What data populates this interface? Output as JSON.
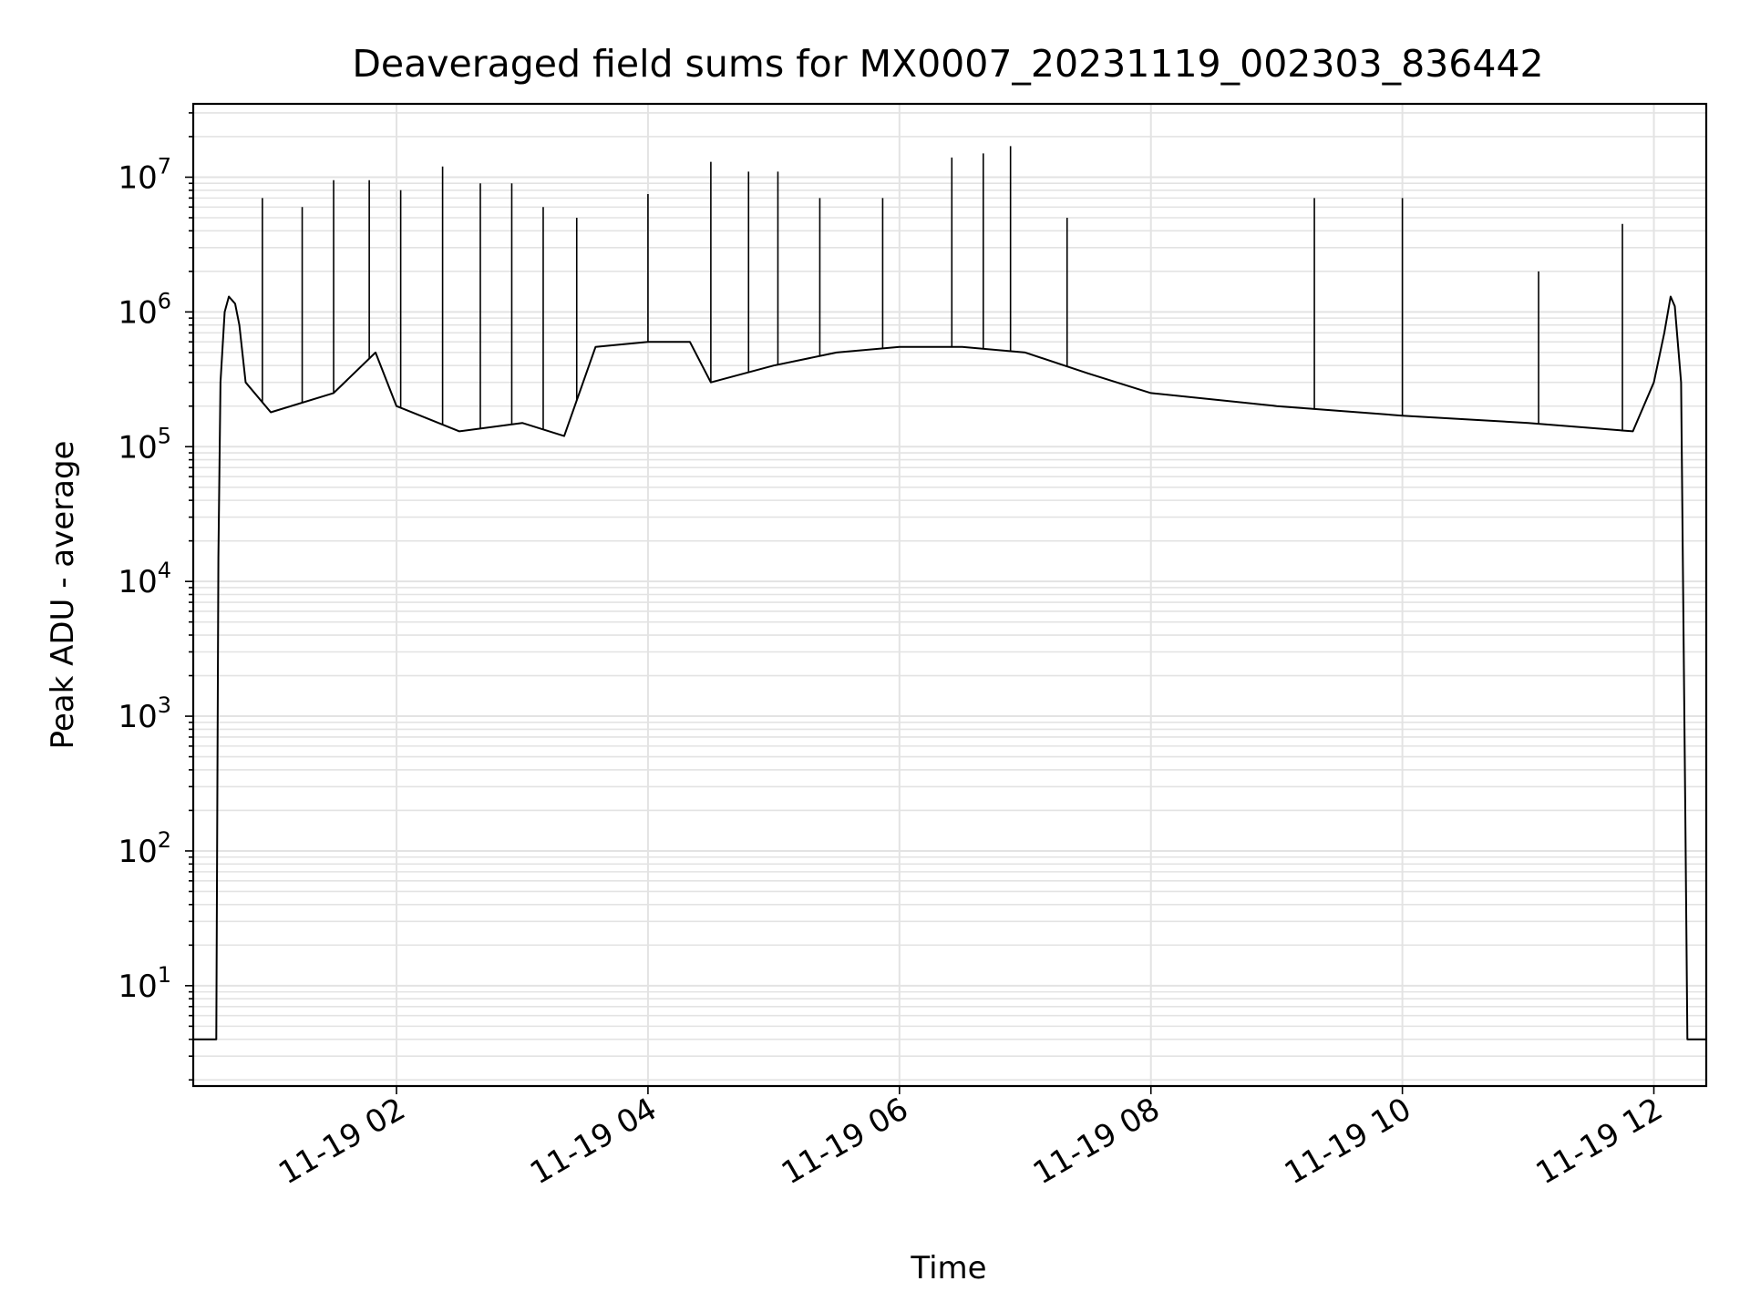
{
  "chart_data": {
    "type": "line",
    "title": "Deaveraged field sums for MX0007_20231119_002303_836442",
    "xlabel": "Time",
    "ylabel": "Peak ADU - average",
    "x_axis": {
      "kind": "datetime",
      "range": [
        "2023-11-19 00:23",
        "2023-11-19 12:25"
      ],
      "ticks": [
        "2023-11-19 02:00",
        "2023-11-19 04:00",
        "2023-11-19 06:00",
        "2023-11-19 08:00",
        "2023-11-19 10:00",
        "2023-11-19 12:00"
      ],
      "tick_labels": [
        "11-19 02",
        "11-19 04",
        "11-19 06",
        "11-19 08",
        "11-19 10",
        "11-19 12"
      ]
    },
    "y_axis": {
      "scale": "log",
      "range": [
        1.8,
        35000000
      ],
      "ticks": [
        10,
        100,
        1000,
        10000,
        100000,
        1000000,
        10000000
      ],
      "tick_labels": [
        {
          "base": "10",
          "exp": "1"
        },
        {
          "base": "10",
          "exp": "2"
        },
        {
          "base": "10",
          "exp": "3"
        },
        {
          "base": "10",
          "exp": "4"
        },
        {
          "base": "10",
          "exp": "5"
        },
        {
          "base": "10",
          "exp": "6"
        },
        {
          "base": "10",
          "exp": "7"
        }
      ]
    },
    "grid": "major and minor, light gray",
    "series": [
      {
        "color": "#000000",
        "points": [
          [
            "2023-11-19 00:23",
            4
          ],
          [
            "2023-11-19 00:34",
            4
          ],
          [
            "2023-11-19 00:35",
            15000
          ],
          [
            "2023-11-19 00:36",
            300000
          ],
          [
            "2023-11-19 00:38",
            1000000
          ],
          [
            "2023-11-19 00:40",
            1300000
          ],
          [
            "2023-11-19 00:43",
            1150000
          ],
          [
            "2023-11-19 00:45",
            800000
          ],
          [
            "2023-11-19 00:48",
            300000
          ],
          [
            "2023-11-19 01:00",
            180000
          ],
          [
            "2023-11-19 01:30",
            250000
          ],
          [
            "2023-11-19 01:50",
            500000
          ],
          [
            "2023-11-19 02:00",
            200000
          ],
          [
            "2023-11-19 02:30",
            130000
          ],
          [
            "2023-11-19 03:00",
            150000
          ],
          [
            "2023-11-19 03:20",
            120000
          ],
          [
            "2023-11-19 03:35",
            550000
          ],
          [
            "2023-11-19 04:00",
            600000
          ],
          [
            "2023-11-19 04:20",
            600000
          ],
          [
            "2023-11-19 04:30",
            300000
          ],
          [
            "2023-11-19 05:00",
            400000
          ],
          [
            "2023-11-19 05:30",
            500000
          ],
          [
            "2023-11-19 06:00",
            550000
          ],
          [
            "2023-11-19 06:30",
            550000
          ],
          [
            "2023-11-19 07:00",
            500000
          ],
          [
            "2023-11-19 07:30",
            350000
          ],
          [
            "2023-11-19 08:00",
            250000
          ],
          [
            "2023-11-19 09:00",
            200000
          ],
          [
            "2023-11-19 10:00",
            170000
          ],
          [
            "2023-11-19 11:00",
            150000
          ],
          [
            "2023-11-19 11:50",
            130000
          ],
          [
            "2023-11-19 12:00",
            300000
          ],
          [
            "2023-11-19 12:05",
            700000
          ],
          [
            "2023-11-19 12:08",
            1300000
          ],
          [
            "2023-11-19 12:10",
            1100000
          ],
          [
            "2023-11-19 12:13",
            300000
          ],
          [
            "2023-11-19 12:15",
            200
          ],
          [
            "2023-11-19 12:16",
            4
          ],
          [
            "2023-11-19 12:25",
            4
          ]
        ],
        "spikes": [
          [
            "2023-11-19 00:56",
            7000000
          ],
          [
            "2023-11-19 01:15",
            6000000
          ],
          [
            "2023-11-19 01:30",
            9500000
          ],
          [
            "2023-11-19 01:47",
            9500000
          ],
          [
            "2023-11-19 02:02",
            8000000
          ],
          [
            "2023-11-19 02:22",
            12000000
          ],
          [
            "2023-11-19 02:40",
            9000000
          ],
          [
            "2023-11-19 02:55",
            9000000
          ],
          [
            "2023-11-19 03:10",
            6000000
          ],
          [
            "2023-11-19 03:26",
            5000000
          ],
          [
            "2023-11-19 04:00",
            7500000
          ],
          [
            "2023-11-19 04:30",
            13000000
          ],
          [
            "2023-11-19 04:48",
            11000000
          ],
          [
            "2023-11-19 05:02",
            11000000
          ],
          [
            "2023-11-19 05:22",
            7000000
          ],
          [
            "2023-11-19 05:52",
            7000000
          ],
          [
            "2023-11-19 06:25",
            14000000
          ],
          [
            "2023-11-19 06:40",
            15000000
          ],
          [
            "2023-11-19 06:53",
            17000000
          ],
          [
            "2023-11-19 07:20",
            5000000
          ],
          [
            "2023-11-19 09:18",
            7000000
          ],
          [
            "2023-11-19 10:00",
            7000000
          ],
          [
            "2023-11-19 11:05",
            2000000
          ],
          [
            "2023-11-19 11:45",
            4500000
          ]
        ]
      }
    ]
  }
}
